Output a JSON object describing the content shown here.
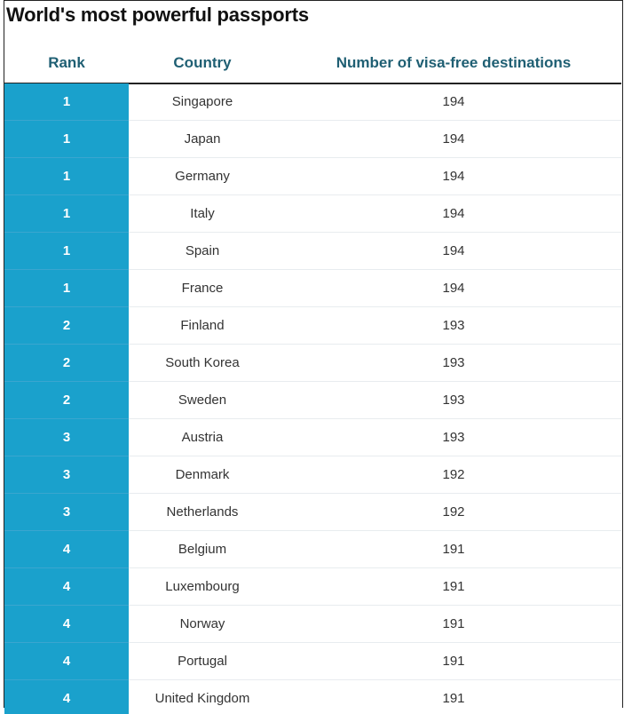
{
  "colors": {
    "rank_bar": "#1aa1cc",
    "header_text": "#1f5f73",
    "body_text": "#333333"
  },
  "chart_data": {
    "type": "table",
    "title": "World's most powerful passports",
    "columns": [
      "Rank",
      "Country",
      "Number of visa-free destinations"
    ],
    "rows": [
      {
        "rank": "1",
        "country": "Singapore",
        "destinations": 194
      },
      {
        "rank": "1",
        "country": "Japan",
        "destinations": 194
      },
      {
        "rank": "1",
        "country": "Germany",
        "destinations": 194
      },
      {
        "rank": "1",
        "country": "Italy",
        "destinations": 194
      },
      {
        "rank": "1",
        "country": "Spain",
        "destinations": 194
      },
      {
        "rank": "1",
        "country": "France",
        "destinations": 194
      },
      {
        "rank": "2",
        "country": "Finland",
        "destinations": 193
      },
      {
        "rank": "2",
        "country": "South Korea",
        "destinations": 193
      },
      {
        "rank": "2",
        "country": "Sweden",
        "destinations": 193
      },
      {
        "rank": "3",
        "country": "Austria",
        "destinations": 193
      },
      {
        "rank": "3",
        "country": "Denmark",
        "destinations": 192
      },
      {
        "rank": "3",
        "country": "Netherlands",
        "destinations": 192
      },
      {
        "rank": "4",
        "country": "Belgium",
        "destinations": 191
      },
      {
        "rank": "4",
        "country": "Luxembourg",
        "destinations": 191
      },
      {
        "rank": "4",
        "country": "Norway",
        "destinations": 191
      },
      {
        "rank": "4",
        "country": "Portugal",
        "destinations": 191
      },
      {
        "rank": "4",
        "country": "United Kingdom",
        "destinations": 191
      }
    ]
  }
}
